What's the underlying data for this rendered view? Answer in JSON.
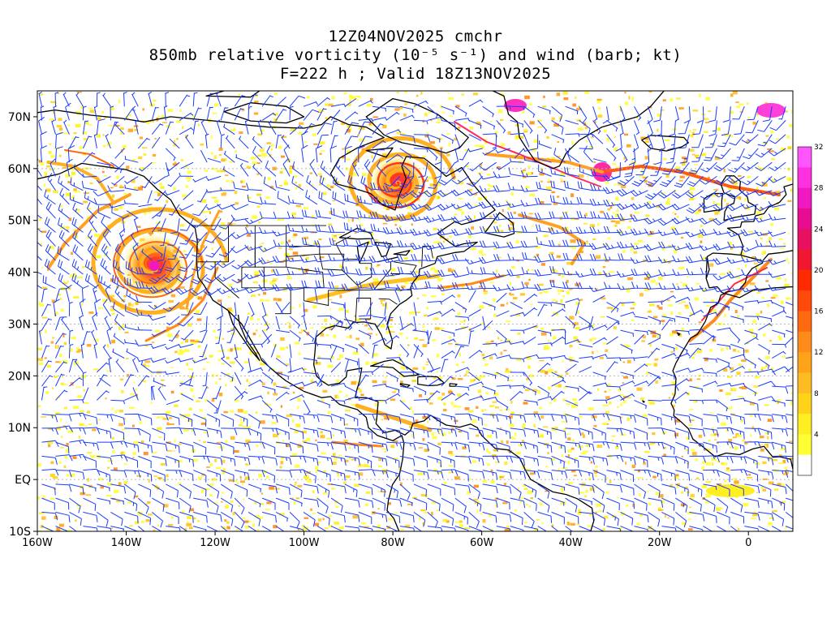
{
  "title": {
    "line1": "12Z04NOV2025 cmchr",
    "line2": "850mb relative vorticity (10⁻⁵ s⁻¹) and wind (barb; kt)",
    "line3": "F=222 h ; Valid 18Z13NOV2025"
  },
  "axes": {
    "x_ticks": [
      "160W",
      "140W",
      "120W",
      "100W",
      "80W",
      "60W",
      "40W",
      "20W",
      "0"
    ],
    "y_ticks": [
      "70N",
      "60N",
      "50N",
      "40N",
      "30N",
      "20N",
      "10N",
      "EQ",
      "10S"
    ],
    "lon_range": [
      -160,
      10
    ],
    "lat_range": [
      -10,
      75
    ]
  },
  "colorbar": {
    "labels": [
      "4",
      "8",
      "12",
      "16",
      "20",
      "24",
      "28",
      "32"
    ],
    "colors": [
      "#ffffff",
      "#ffff33",
      "#ffee22",
      "#ffd31a",
      "#ffbb22",
      "#ffa31a",
      "#ff8c1a",
      "#ff6a10",
      "#ff4a0c",
      "#ff2a00",
      "#f01830",
      "#e81060",
      "#e80c90",
      "#f018c0",
      "#ff30e0",
      "#ff55ff"
    ]
  },
  "colors": {
    "barb": "#1a3cff",
    "coast": "#000000",
    "grid": "#b8b8b8"
  }
}
